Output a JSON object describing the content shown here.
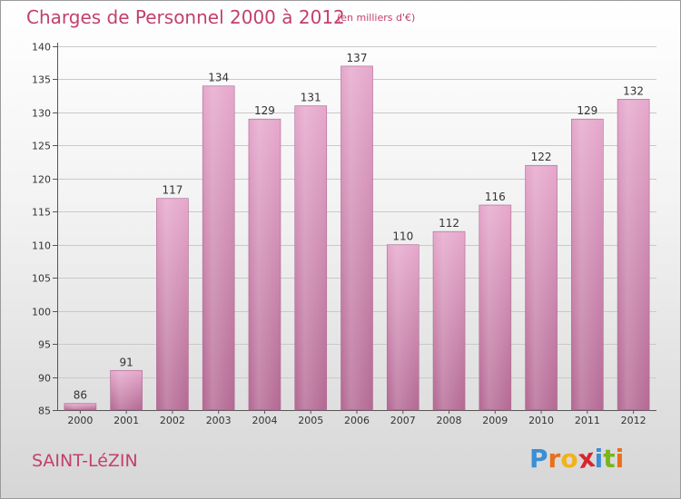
{
  "header": {
    "title": "Charges de Personnel 2000 à 2012",
    "unit": "(en milliers d'€)"
  },
  "footer": {
    "commune": "SAINT-LéZIN",
    "logo_letters": [
      "P",
      "r",
      "o",
      "x",
      "i",
      "t",
      "i"
    ],
    "logo_colors": [
      "#3a8fd6",
      "#e8701a",
      "#f2b21b",
      "#d8262e",
      "#3a8fd6",
      "#79b51c",
      "#e8701a"
    ]
  },
  "colors": {
    "bar_top": "#e6a8cc",
    "bar_bottom": "#b46a94",
    "accent": "#c2406e"
  },
  "chart_data": {
    "type": "bar",
    "title": "Charges de Personnel 2000 à 2012",
    "subtitle": "(en milliers d'€)",
    "categories": [
      "2000",
      "2001",
      "2002",
      "2003",
      "2004",
      "2005",
      "2006",
      "2007",
      "2008",
      "2009",
      "2010",
      "2011",
      "2012"
    ],
    "values": [
      86,
      91,
      117,
      134,
      129,
      131,
      137,
      110,
      112,
      116,
      122,
      129,
      132
    ],
    "data_labels": [
      "86",
      "91",
      "117",
      "134",
      "129",
      "131",
      "137",
      "110",
      "112",
      "116",
      "122",
      "129",
      "132"
    ],
    "ylim": [
      85,
      140
    ],
    "yticks": [
      85,
      90,
      95,
      100,
      105,
      110,
      115,
      120,
      125,
      130,
      135,
      140
    ],
    "ytick_labels": [
      "85",
      "90",
      "95",
      "100",
      "105",
      "110",
      "115",
      "120",
      "125",
      "130",
      "135",
      "140"
    ],
    "grid": true,
    "xlabel": "",
    "ylabel": ""
  }
}
